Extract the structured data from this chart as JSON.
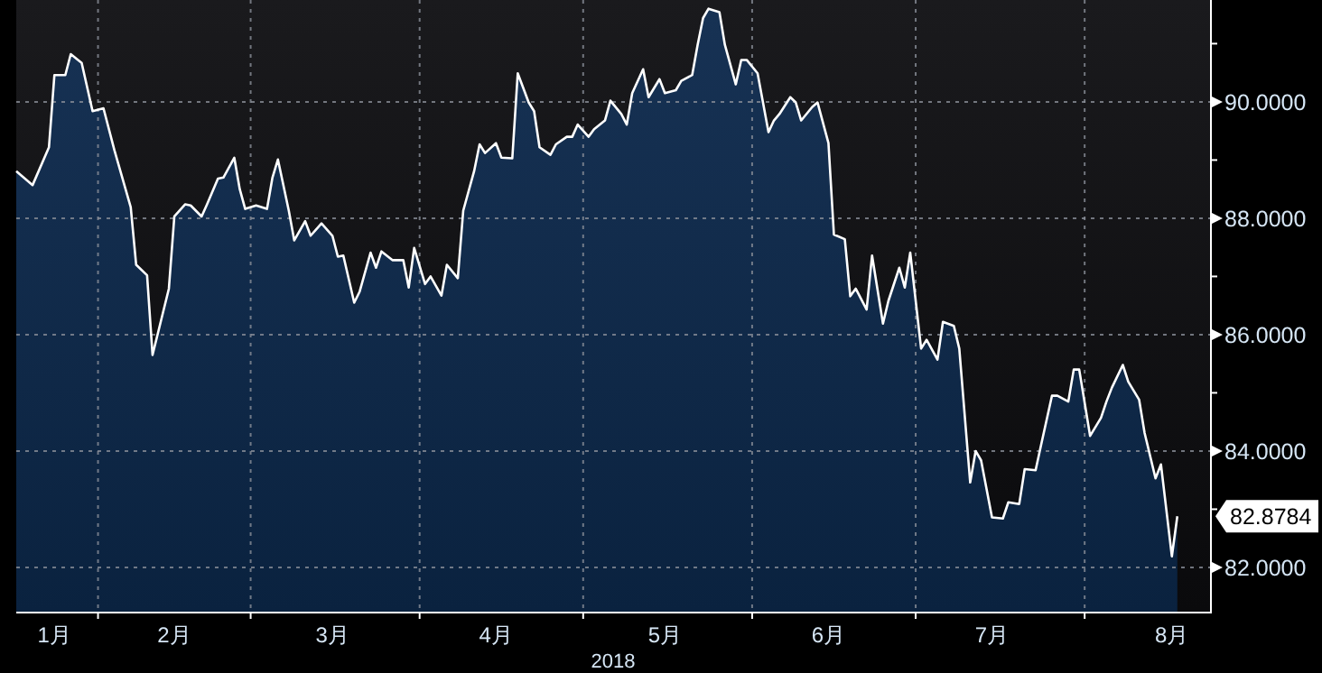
{
  "chart_data": {
    "type": "area",
    "xlabel": "2018",
    "grid": true,
    "xlim": [
      "2018-01-17",
      "2018-08-24"
    ],
    "xticks": [
      {
        "value": "2018-01-24",
        "label": "1月"
      },
      {
        "value": "2018-02-01",
        "label": null
      },
      {
        "value": "2018-02-15",
        "label": "2月"
      },
      {
        "value": "2018-03-01",
        "label": null
      },
      {
        "value": "2018-03-16",
        "label": "3月"
      },
      {
        "value": "2018-04-01",
        "label": null
      },
      {
        "value": "2018-04-15",
        "label": "4月"
      },
      {
        "value": "2018-05-01",
        "label": null
      },
      {
        "value": "2018-05-16",
        "label": "5月"
      },
      {
        "value": "2018-06-01",
        "label": null
      },
      {
        "value": "2018-06-15",
        "label": "6月"
      },
      {
        "value": "2018-07-01",
        "label": null
      },
      {
        "value": "2018-07-15",
        "label": "7月"
      },
      {
        "value": "2018-08-01",
        "label": null
      },
      {
        "value": "2018-08-17",
        "label": "8月"
      }
    ],
    "ylim": [
      81.24,
      91.75
    ],
    "yticks": [
      {
        "value": 82,
        "label": "82.0000"
      },
      {
        "value": 83,
        "label": null
      },
      {
        "value": 84,
        "label": "84.0000"
      },
      {
        "value": 85,
        "label": null
      },
      {
        "value": 86,
        "label": "86.0000"
      },
      {
        "value": 87,
        "label": null
      },
      {
        "value": 88,
        "label": "88.0000"
      },
      {
        "value": 89,
        "label": null
      },
      {
        "value": 90,
        "label": "90.0000"
      },
      {
        "value": 91,
        "label": null
      }
    ],
    "annotations": [
      {
        "text": "82.8784",
        "x": "2018-08-18",
        "y": 82.8784
      }
    ],
    "x": [
      "2018-01-17",
      "2018-01-20",
      "2018-01-23",
      "2018-01-24",
      "2018-01-26",
      "2018-01-27",
      "2018-01-29",
      "2018-01-31",
      "2018-02-02",
      "2018-02-04",
      "2018-02-07",
      "2018-02-08",
      "2018-02-10",
      "2018-02-11",
      "2018-02-14",
      "2018-02-15",
      "2018-02-17",
      "2018-02-18",
      "2018-02-20",
      "2018-02-21",
      "2018-02-23",
      "2018-02-24",
      "2018-02-26",
      "2018-02-27",
      "2018-02-28",
      "2018-03-02",
      "2018-03-04",
      "2018-03-05",
      "2018-03-06",
      "2018-03-08",
      "2018-03-09",
      "2018-03-11",
      "2018-03-12",
      "2018-03-14",
      "2018-03-16",
      "2018-03-17",
      "2018-03-18",
      "2018-03-20",
      "2018-03-21",
      "2018-03-23",
      "2018-03-24",
      "2018-03-25",
      "2018-03-27",
      "2018-03-29",
      "2018-03-30",
      "2018-03-31",
      "2018-04-02",
      "2018-04-03",
      "2018-04-05",
      "2018-04-06",
      "2018-04-08",
      "2018-04-09",
      "2018-04-11",
      "2018-04-12",
      "2018-04-13",
      "2018-04-15",
      "2018-04-16",
      "2018-04-18",
      "2018-04-19",
      "2018-04-21",
      "2018-04-22",
      "2018-04-23",
      "2018-04-25",
      "2018-04-26",
      "2018-04-28",
      "2018-04-29",
      "2018-04-30",
      "2018-05-02",
      "2018-05-03",
      "2018-05-05",
      "2018-05-06",
      "2018-05-08",
      "2018-05-09",
      "2018-05-10",
      "2018-05-12",
      "2018-05-13",
      "2018-05-15",
      "2018-05-16",
      "2018-05-18",
      "2018-05-19",
      "2018-05-21",
      "2018-05-22",
      "2018-05-23",
      "2018-05-24",
      "2018-05-26",
      "2018-05-27",
      "2018-05-29",
      "2018-05-30",
      "2018-05-31",
      "2018-06-02",
      "2018-06-04",
      "2018-06-05",
      "2018-06-06",
      "2018-06-08",
      "2018-06-09",
      "2018-06-10",
      "2018-06-12",
      "2018-06-13",
      "2018-06-15",
      "2018-06-16",
      "2018-06-18",
      "2018-06-19",
      "2018-06-20",
      "2018-06-22",
      "2018-06-23",
      "2018-06-25",
      "2018-06-26",
      "2018-06-28",
      "2018-06-29",
      "2018-06-30",
      "2018-07-02",
      "2018-07-03",
      "2018-07-05",
      "2018-07-06",
      "2018-07-08",
      "2018-07-09",
      "2018-07-11",
      "2018-07-12",
      "2018-07-13",
      "2018-07-15",
      "2018-07-17",
      "2018-07-18",
      "2018-07-20",
      "2018-07-21",
      "2018-07-23",
      "2018-07-24",
      "2018-07-26",
      "2018-07-27",
      "2018-07-29",
      "2018-07-30",
      "2018-07-31",
      "2018-08-02",
      "2018-08-04",
      "2018-08-05",
      "2018-08-06",
      "2018-08-08",
      "2018-08-09",
      "2018-08-11",
      "2018-08-12",
      "2018-08-14",
      "2018-08-15",
      "2018-08-17",
      "2018-08-18"
    ],
    "series": [
      {
        "color": "#ffffff",
        "values": [
          88.81,
          88.57,
          89.22,
          90.46,
          90.46,
          90.82,
          90.67,
          89.84,
          89.89,
          89.17,
          88.19,
          87.2,
          87.02,
          85.65,
          86.79,
          88.03,
          88.24,
          88.22,
          88.03,
          88.24,
          88.68,
          88.7,
          89.04,
          88.5,
          88.16,
          88.22,
          88.16,
          88.7,
          89.01,
          88.13,
          87.62,
          87.95,
          87.7,
          87.91,
          87.7,
          87.34,
          87.36,
          86.55,
          86.74,
          87.41,
          87.15,
          87.43,
          87.28,
          87.28,
          86.81,
          87.49,
          86.87,
          87.0,
          86.67,
          87.2,
          86.97,
          88.13,
          88.81,
          89.27,
          89.12,
          89.29,
          89.04,
          89.03,
          90.49,
          89.99,
          89.84,
          89.22,
          89.09,
          89.27,
          89.4,
          89.4,
          89.61,
          89.4,
          89.53,
          89.68,
          90.02,
          89.79,
          89.61,
          90.15,
          90.56,
          90.08,
          90.39,
          90.15,
          90.2,
          90.36,
          90.46,
          90.98,
          91.44,
          91.6,
          91.54,
          90.98,
          90.3,
          90.72,
          90.72,
          90.49,
          89.48,
          89.68,
          89.79,
          90.08,
          89.99,
          89.68,
          89.91,
          89.99,
          89.29,
          87.72,
          87.64,
          86.66,
          86.79,
          86.43,
          87.36,
          86.19,
          86.58,
          87.15,
          86.81,
          87.41,
          85.76,
          85.91,
          85.57,
          86.22,
          86.15,
          85.76,
          83.46,
          84.0,
          83.84,
          82.86,
          82.84,
          83.12,
          83.09,
          83.69,
          83.67,
          84.1,
          84.95,
          84.95,
          84.85,
          85.4,
          85.4,
          84.26,
          84.57,
          84.85,
          85.09,
          85.48,
          85.19,
          84.88,
          84.31,
          83.53,
          83.77,
          82.19,
          82.8784
        ]
      }
    ]
  }
}
